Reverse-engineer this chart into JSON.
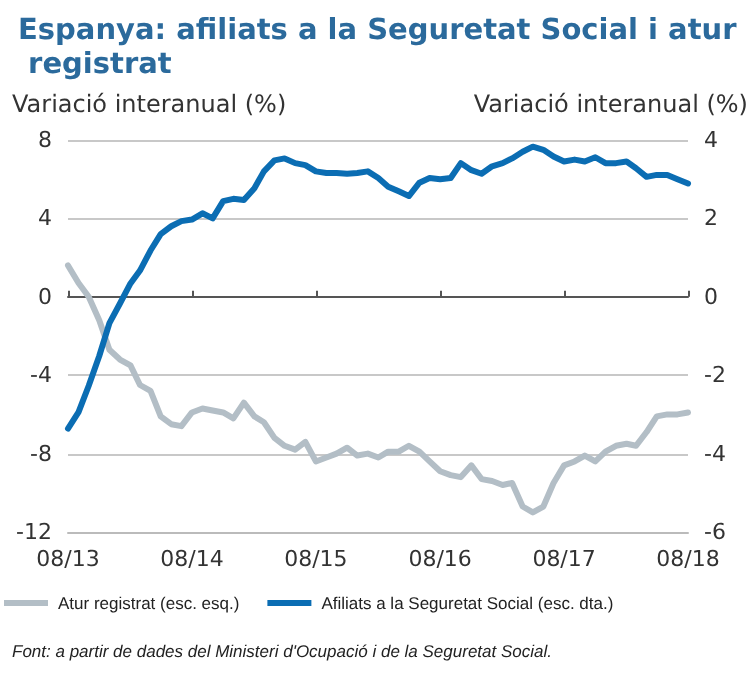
{
  "chart_data": {
    "type": "line",
    "title": "Espanya: afiliats a la Seguretat Social i atur registrat",
    "ylabel": "Variació interanual (%)",
    "y2label": "Variació interanual (%)",
    "annotations": [
      "Font: a partir de dades del Ministeri d'Ocupació i de la Seguretat Social."
    ],
    "x": [
      "2013-08",
      "2013-09",
      "2013-10",
      "2013-11",
      "2013-12",
      "2014-01",
      "2014-02",
      "2014-03",
      "2014-04",
      "2014-05",
      "2014-06",
      "2014-07",
      "2014-08",
      "2014-09",
      "2014-10",
      "2014-11",
      "2014-12",
      "2015-01",
      "2015-02",
      "2015-03",
      "2015-04",
      "2015-05",
      "2015-06",
      "2015-07",
      "2015-08",
      "2015-09",
      "2015-10",
      "2015-11",
      "2015-12",
      "2016-01",
      "2016-02",
      "2016-03",
      "2016-04",
      "2016-05",
      "2016-06",
      "2016-07",
      "2016-08",
      "2016-09",
      "2016-10",
      "2016-11",
      "2016-12",
      "2017-01",
      "2017-02",
      "2017-03",
      "2017-04",
      "2017-05",
      "2017-06",
      "2017-07",
      "2017-08",
      "2017-09",
      "2017-10",
      "2017-11",
      "2017-12",
      "2018-01",
      "2018-02",
      "2018-03",
      "2018-04",
      "2018-05",
      "2018-06",
      "2018-07",
      "2018-08"
    ],
    "series": [
      {
        "name": "Atur registrat (esc. esq.)",
        "color": "#b3bec6",
        "values": [
          1.6,
          0.7,
          0.0,
          -1.2,
          -2.7,
          -3.2,
          -3.5,
          -4.5,
          -4.8,
          -6.1,
          -6.5,
          -6.6,
          -5.9,
          -5.7,
          -5.8,
          -5.9,
          -6.2,
          -5.4,
          -6.1,
          -6.4,
          -7.2,
          -7.6,
          -7.8,
          -7.4,
          -8.4,
          -8.2,
          -8.0,
          -7.7,
          -8.1,
          -8.0,
          -8.2,
          -7.9,
          -7.9,
          -7.6,
          -7.9,
          -8.4,
          -8.9,
          -9.1,
          -9.2,
          -8.6,
          -9.3,
          -9.4,
          -9.6,
          -9.5,
          -10.7,
          -11.0,
          -10.7,
          -9.5,
          -8.6,
          -8.4,
          -8.1,
          -8.4,
          -7.9,
          -7.6,
          -7.5,
          -7.6,
          -6.9,
          -6.1,
          -6.0,
          -6.0,
          -5.9
        ]
      },
      {
        "name": "Afiliats a la Seguretat Social (esc. dta.)",
        "color": "#0b6db3",
        "axis": "y2",
        "values": [
          -3.36,
          -2.94,
          -2.27,
          -1.51,
          -0.67,
          -0.17,
          0.34,
          0.67,
          1.18,
          1.6,
          1.8,
          1.93,
          1.97,
          2.13,
          2.0,
          2.44,
          2.5,
          2.47,
          2.77,
          3.2,
          3.48,
          3.53,
          3.41,
          3.36,
          3.2,
          3.16,
          3.16,
          3.14,
          3.16,
          3.2,
          3.03,
          2.81,
          2.69,
          2.57,
          2.91,
          3.03,
          3.0,
          3.03,
          3.41,
          3.23,
          3.14,
          3.33,
          3.41,
          3.53,
          3.7,
          3.83,
          3.75,
          3.58,
          3.45,
          3.5,
          3.45,
          3.56,
          3.41,
          3.41,
          3.45,
          3.28,
          3.06,
          3.11,
          3.11,
          3.0,
          2.89
        ]
      }
    ],
    "xlim": [
      "2013-08",
      "2018-08"
    ],
    "xticks": [
      {
        "value": "2013-08",
        "label": "08/13"
      },
      {
        "value": "2014-08",
        "label": "08/14"
      },
      {
        "value": "2015-08",
        "label": "08/15"
      },
      {
        "value": "2016-08",
        "label": "08/16"
      },
      {
        "value": "2017-08",
        "label": "08/17"
      },
      {
        "value": "2018-08",
        "label": "08/18"
      }
    ],
    "ylim": [
      -12,
      8
    ],
    "yticks": [
      -12,
      -8,
      -4,
      0,
      4,
      8
    ],
    "y2lim": [
      -6,
      4
    ],
    "y2ticks": [
      -6,
      -4,
      -2,
      0,
      2,
      4
    ],
    "grid": "y",
    "legend": "bottom",
    "marker": "none",
    "line_style": "solid"
  }
}
